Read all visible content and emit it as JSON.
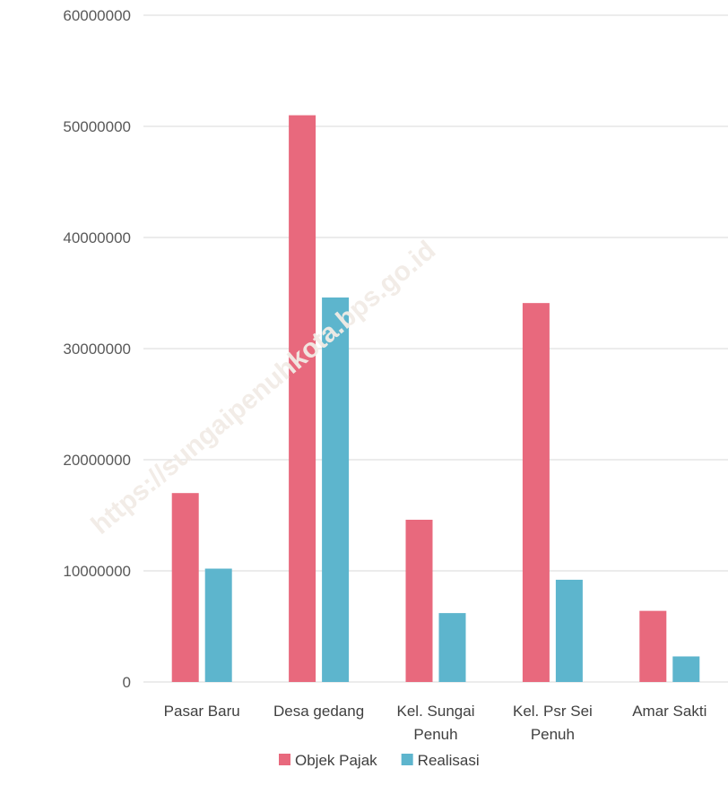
{
  "watermark": "https://sungaipenuhkota.bps.go.id",
  "chart_data": {
    "type": "bar",
    "categories": [
      [
        "Pasar Baru"
      ],
      [
        "Desa gedang"
      ],
      [
        "Kel. Sungai",
        "Penuh"
      ],
      [
        "Kel. Psr Sei",
        "Penuh"
      ],
      [
        "Amar Sakti"
      ]
    ],
    "series": [
      {
        "name": "Objek Pajak",
        "color": "#e8697d",
        "values": [
          17000000,
          51000000,
          14600000,
          34100000,
          6400000
        ]
      },
      {
        "name": "Realisasi",
        "color": "#5db5cd",
        "values": [
          10200000,
          34600000,
          6200000,
          9200000,
          2300000
        ]
      }
    ],
    "ylim": [
      0,
      60000000
    ],
    "yticks": [
      0,
      10000000,
      20000000,
      30000000,
      40000000,
      50000000,
      60000000
    ],
    "grid": true,
    "legend": "bottom"
  }
}
